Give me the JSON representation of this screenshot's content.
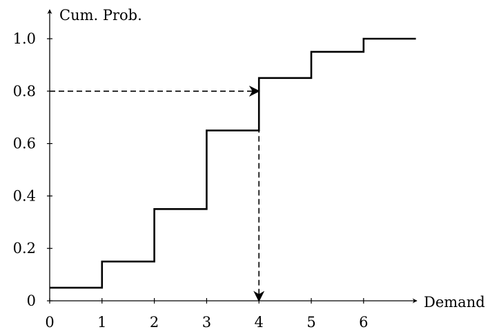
{
  "chart_data": {
    "type": "line",
    "title": "",
    "xlabel": "Demand",
    "ylabel": "Cum. Prob.",
    "xlim": [
      0,
      7
    ],
    "ylim": [
      0,
      1.0
    ],
    "x_ticks": [
      0,
      1,
      2,
      3,
      4,
      5,
      6
    ],
    "x_tick_labels": [
      "0",
      "1",
      "2",
      "3",
      "4",
      "5",
      "6"
    ],
    "y_ticks": [
      0,
      0.2,
      0.4,
      0.6,
      0.8,
      1.0
    ],
    "y_tick_labels": [
      "0",
      "0.2",
      "0.4",
      "0.6",
      "0.8",
      "1.0"
    ],
    "grid": false,
    "series": [
      {
        "style": "step",
        "x": [
          0,
          1,
          2,
          3,
          4,
          5,
          6,
          7
        ],
        "values": [
          0.05,
          0.15,
          0.35,
          0.65,
          0.85,
          0.95,
          1.0,
          1.0
        ],
        "color": "#000000"
      }
    ],
    "annotations": [
      {
        "type": "dashed-arrow",
        "from": [
          0,
          0.8
        ],
        "to": [
          4,
          0.8
        ]
      },
      {
        "type": "dashed-arrow",
        "from": [
          4,
          0.8
        ],
        "to": [
          4,
          0
        ]
      }
    ]
  }
}
